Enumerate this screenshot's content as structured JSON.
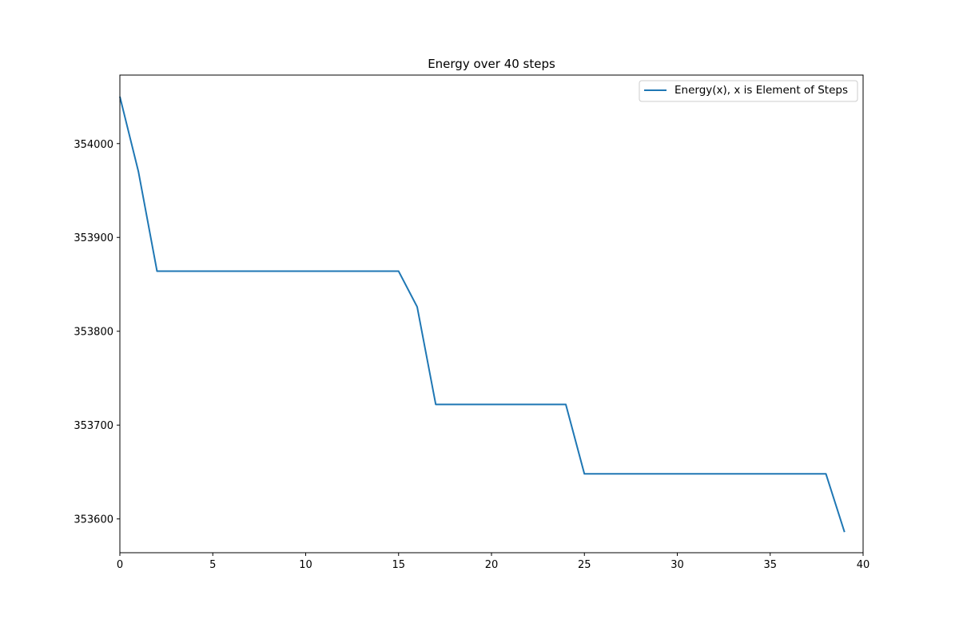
{
  "chart_data": {
    "type": "line",
    "title": "Energy over  40 steps",
    "xlabel": "",
    "ylabel": "",
    "xlim": [
      0,
      40
    ],
    "ylim": [
      353564,
      354073
    ],
    "xticks": [
      0,
      5,
      10,
      15,
      20,
      25,
      30,
      35,
      40
    ],
    "yticks": [
      353600,
      353700,
      353800,
      353900,
      354000
    ],
    "grid": false,
    "legend_position": "top-right",
    "series": [
      {
        "name": "Energy(x), x is Element of Steps",
        "color": "#1f77b4",
        "x": [
          0,
          1,
          2,
          3,
          4,
          5,
          6,
          7,
          8,
          9,
          10,
          11,
          12,
          13,
          14,
          15,
          16,
          17,
          18,
          19,
          20,
          21,
          22,
          23,
          24,
          25,
          26,
          27,
          28,
          29,
          30,
          31,
          32,
          33,
          34,
          35,
          36,
          37,
          38,
          39
        ],
        "y": [
          354050,
          353970,
          353864,
          353864,
          353864,
          353864,
          353864,
          353864,
          353864,
          353864,
          353864,
          353864,
          353864,
          353864,
          353864,
          353864,
          353826,
          353722,
          353722,
          353722,
          353722,
          353722,
          353722,
          353722,
          353722,
          353648,
          353648,
          353648,
          353648,
          353648,
          353648,
          353648,
          353648,
          353648,
          353648,
          353648,
          353648,
          353648,
          353648,
          353586
        ]
      }
    ]
  }
}
